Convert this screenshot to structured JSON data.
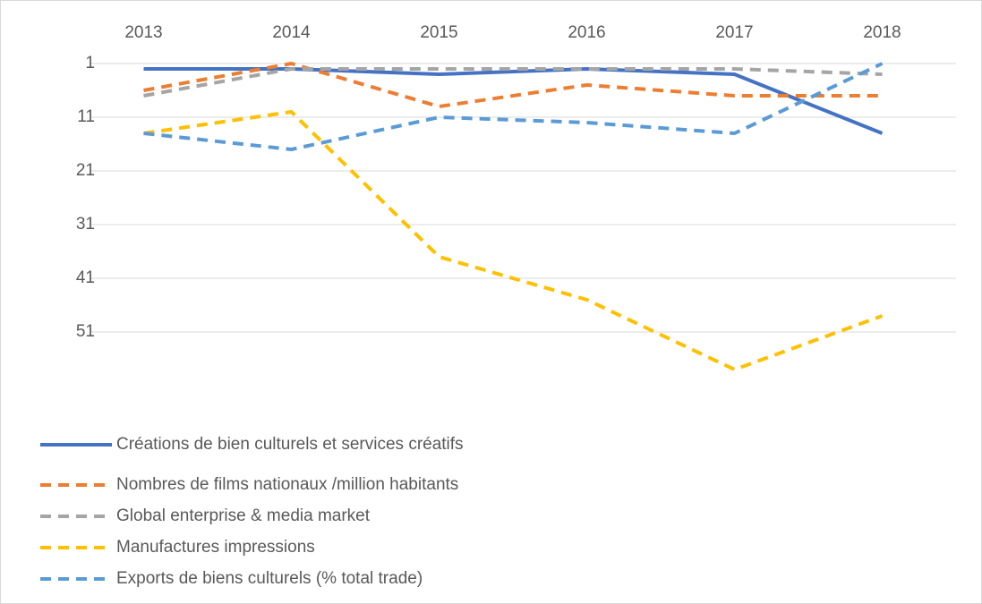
{
  "chart_data": {
    "type": "line",
    "categories": [
      "2013",
      "2014",
      "2015",
      "2016",
      "2017",
      "2018"
    ],
    "ylim": [
      1,
      61
    ],
    "y_reversed": true,
    "yticks": [
      1,
      11,
      21,
      31,
      41,
      51
    ],
    "grid": true,
    "legend": "bottom-left",
    "series": [
      {
        "name": "Créations de bien culturels et services créatifs",
        "color": "#4472c4",
        "dashed": false,
        "values": [
          2,
          2,
          3,
          2,
          3,
          14
        ]
      },
      {
        "name": "Nombres de films nationaux /million habitants",
        "color": "#ed7d31",
        "dashed": true,
        "values": [
          6,
          1,
          9,
          5,
          7,
          7
        ]
      },
      {
        "name": "Global enterprise & media market",
        "color": "#a5a5a5",
        "dashed": true,
        "values": [
          7,
          2,
          2,
          2,
          2,
          3
        ]
      },
      {
        "name": "Manufactures impressions",
        "color": "#ffc000",
        "dashed": true,
        "values": [
          14,
          10,
          37,
          45,
          58,
          48
        ]
      },
      {
        "name": "Exports de biens culturels (% total trade)",
        "color": "#5b9bd5",
        "dashed": true,
        "values": [
          14,
          17,
          11,
          12,
          14,
          1
        ]
      }
    ]
  }
}
